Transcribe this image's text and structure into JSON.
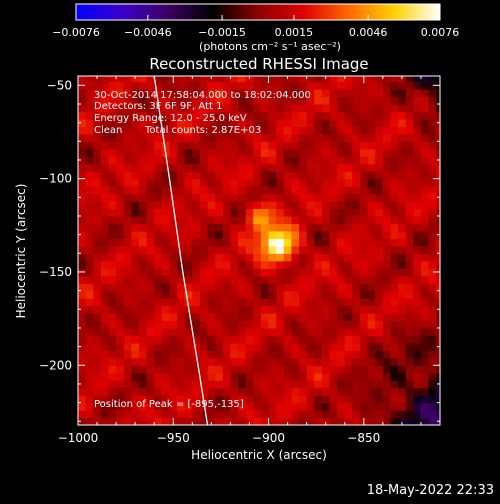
{
  "chart_data": {
    "type": "heatmap",
    "title": "Reconstructed RHESSI Image",
    "xlabel": "Heliocentric X (arcsec)",
    "ylabel": "Heliocentric Y (arcsec)",
    "xlim": [
      -1000,
      -810
    ],
    "ylim": [
      -232,
      -45
    ],
    "x_ticks": [
      -1000,
      -950,
      -900,
      -850
    ],
    "x_tick_labels": [
      "−1000",
      "−950",
      "−900",
      "−850"
    ],
    "y_ticks": [
      -50,
      -100,
      -150,
      -200
    ],
    "y_tick_labels": [
      "−50",
      "−100",
      "−150",
      "−200"
    ],
    "annotations": [
      "30-Oct-2014 17:58:04.000 to 18:02:04.000",
      "Detectors: 3F 6F 9F, Att 1",
      "Energy Range: 12.0 - 25.0 keV",
      "Clean",
      "Total counts: 2.87E+03"
    ],
    "peak_label": "Position of Peak = [-895,-135]",
    "peak": {
      "x": -895,
      "y": -135
    },
    "limb_curve": [
      [
        -960,
        -45
      ],
      [
        -952,
        -100
      ],
      [
        -945,
        -150
      ],
      [
        -937,
        -200
      ],
      [
        -932,
        -232
      ]
    ],
    "colorbar": {
      "min": -0.0076,
      "max": 0.0076,
      "tick_values": [
        -0.0076,
        -0.0046,
        -0.0015,
        0.0015,
        0.0046,
        0.0076
      ],
      "tick_labels": [
        "−0.0076",
        "−0.0046",
        "−0.0015",
        "0.0015",
        "0.0046",
        "0.0076"
      ],
      "units_label": "(photons cm⁻² s⁻¹ asec⁻²)",
      "colormap": [
        "#0000ff",
        "#3a00c8",
        "#3c0064",
        "#000000",
        "#8c0000",
        "#e00000",
        "#ff6a00",
        "#ffd200",
        "#ffffff"
      ]
    },
    "grid": false
  },
  "footer": {
    "timestamp": "18-May-2022 22:33"
  }
}
